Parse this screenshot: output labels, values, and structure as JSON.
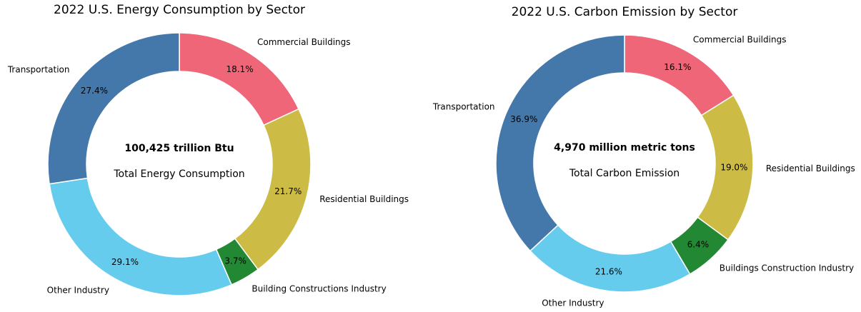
{
  "chart_data": [
    {
      "type": "pie",
      "title": "2022 U.S. Energy Consumption by Sector",
      "center_text": "100,425 trillion Btu",
      "center_subtext": "Total Energy Consumption",
      "categories": [
        "Commercial Buildings",
        "Residential Buildings",
        "Building Constructions Industry",
        "Other Industry",
        "Transportation"
      ],
      "values": [
        18.1,
        21.7,
        3.7,
        29.1,
        27.4
      ],
      "value_labels": [
        "18.1%",
        "21.7%",
        "3.7%",
        "29.1%",
        "27.4%"
      ],
      "colors": [
        "#ee6677",
        "#ccbb44",
        "#228833",
        "#66ccee",
        "#4477aa"
      ]
    },
    {
      "type": "pie",
      "title": "2022 U.S. Carbon Emission by Sector",
      "center_text": "4,970 million metric tons",
      "center_subtext": "Total Carbon Emission",
      "categories": [
        "Commercial Buildings",
        "Residential Buildings",
        "Buildings Construction Industry",
        "Other Industry",
        "Transportation"
      ],
      "values": [
        16.1,
        19.0,
        6.4,
        21.6,
        36.9
      ],
      "value_labels": [
        "16.1%",
        "19.0%",
        "6.4%",
        "21.6%",
        "36.9%"
      ],
      "colors": [
        "#ee6677",
        "#ccbb44",
        "#228833",
        "#66ccee",
        "#4477aa"
      ]
    }
  ]
}
